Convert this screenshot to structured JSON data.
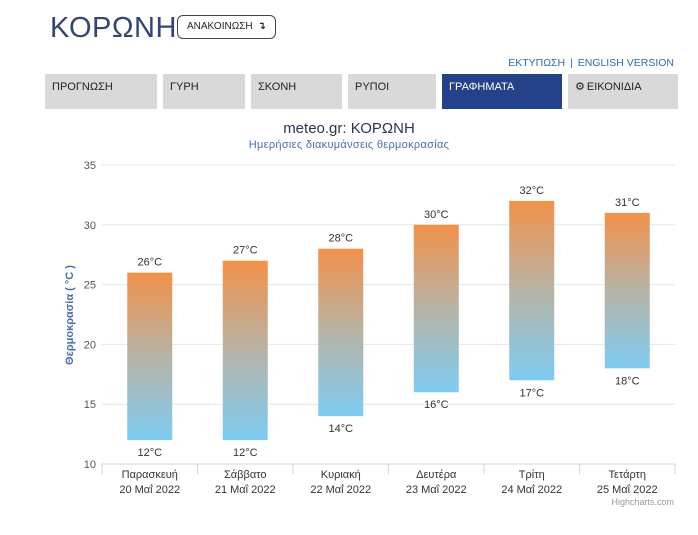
{
  "header": {
    "city": "ΚΟΡΩΝΗ",
    "announce_label": "ΑΝΑΚΟΙΝΩΣΗ",
    "announce_icon": "↴"
  },
  "toplinks": {
    "print": "ΕΚΤΥΠΩΣΗ",
    "separator": "|",
    "english": "ENGLISH VERSION"
  },
  "tabs": [
    {
      "label": "ΠΡΟΓΝΩΣΗ",
      "active": false
    },
    {
      "label": "ΓΥΡΗ",
      "active": false
    },
    {
      "label": "ΣΚΟΝΗ",
      "active": false
    },
    {
      "label": "ΡΥΠΟΙ",
      "active": false
    },
    {
      "label": "ΓΡΑΦΗΜΑΤΑ",
      "active": true
    },
    {
      "label": "ΕΙΚΟΝΙΔΙΑ",
      "active": false,
      "icon": "gear-icon"
    }
  ],
  "chart_data": {
    "type": "bar",
    "subtype": "columnrange",
    "title": "meteo.gr: ΚΟΡΩΝΗ",
    "subtitle": "Ημερήσιες διακυμάνσεις θερμοκρασίας",
    "ylabel": "Θερμοκρασία ( °C )",
    "xlabel": "",
    "ylim": [
      10,
      35
    ],
    "yticks": [
      10,
      15,
      20,
      25,
      30,
      35
    ],
    "grid": true,
    "categories": [
      [
        "Παρασκευή",
        "20 Μαΐ 2022"
      ],
      [
        "Σάββατο",
        "21 Μαΐ 2022"
      ],
      [
        "Κυριακή",
        "22 Μαΐ 2022"
      ],
      [
        "Δευτέρα",
        "23 Μαΐ 2022"
      ],
      [
        "Τρίτη",
        "24 Μαΐ 2022"
      ],
      [
        "Τετάρτη",
        "25 Μαΐ 2022"
      ]
    ],
    "low": [
      12,
      12,
      14,
      16,
      17,
      18
    ],
    "high": [
      26,
      27,
      28,
      30,
      32,
      31
    ],
    "unit": "°C",
    "colors": {
      "low": "#7fcbf2",
      "mid": "#b7b3a6",
      "high": "#f2914a"
    }
  },
  "credits": "Highcharts.com"
}
